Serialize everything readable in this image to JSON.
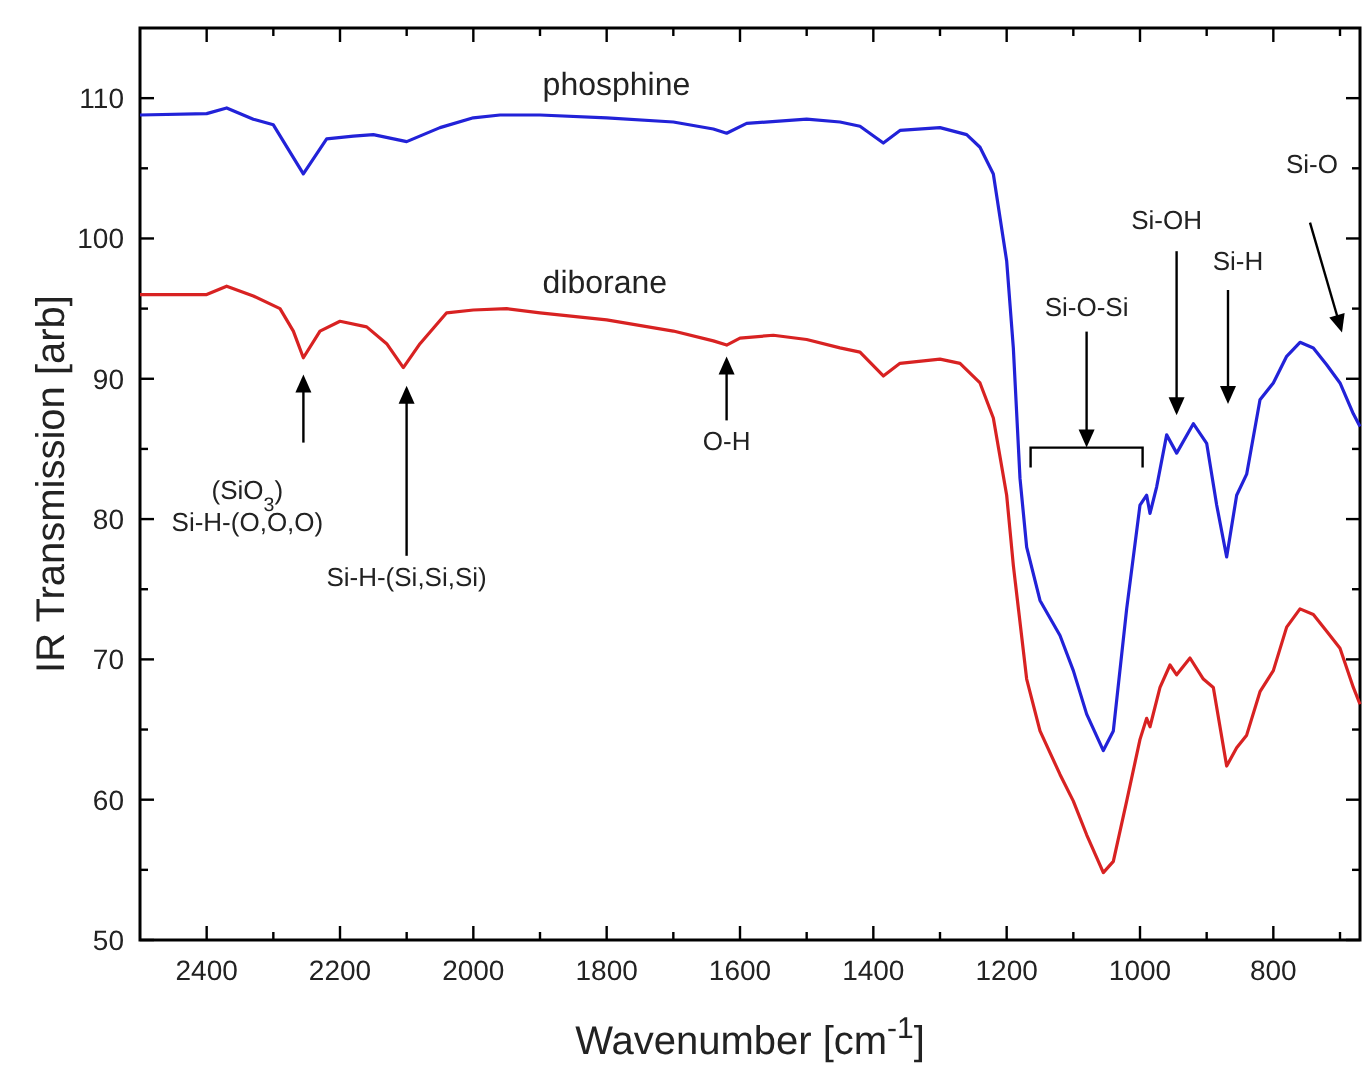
{
  "chart_data": {
    "type": "line",
    "xlabel": "Wavenumber [cm$^{-1}$]",
    "ylabel": "IR Transmission [arb]",
    "xlim": [
      2500,
      670
    ],
    "ylim": [
      50,
      115
    ],
    "xticks": [
      2400,
      {
        "value": 2300,
        "label": null
      },
      2200,
      {
        "value": 2100,
        "label": null
      },
      2000,
      {
        "value": 1900,
        "label": null
      },
      1800,
      {
        "value": 1700,
        "label": null
      },
      1600,
      {
        "value": 1500,
        "label": null
      },
      1400,
      {
        "value": 1300,
        "label": null
      },
      1200,
      {
        "value": 1100,
        "label": null
      },
      1000,
      {
        "value": 900,
        "label": null
      },
      800,
      {
        "value": 700,
        "label": null
      }
    ],
    "yticks": [
      50,
      {
        "value": 55,
        "label": null
      },
      60,
      {
        "value": 65,
        "label": null
      },
      70,
      {
        "value": 75,
        "label": null
      },
      80,
      {
        "value": 85,
        "label": null
      },
      90,
      {
        "value": 95,
        "label": null
      },
      100,
      {
        "value": 105,
        "label": null
      },
      110
    ],
    "grid": false,
    "marker": "none",
    "line_style": "solid",
    "series": [
      {
        "name": "phosphine",
        "color": "#2222d8",
        "x": [
          2500,
          2400,
          2370,
          2330,
          2300,
          2255,
          2220,
          2180,
          2150,
          2100,
          2050,
          2000,
          1960,
          1900,
          1800,
          1700,
          1640,
          1620,
          1590,
          1500,
          1450,
          1420,
          1385,
          1360,
          1300,
          1260,
          1240,
          1220,
          1200,
          1190,
          1180,
          1170,
          1150,
          1120,
          1100,
          1080,
          1055,
          1040,
          1020,
          1000,
          990,
          985,
          975,
          960,
          945,
          920,
          900,
          885,
          870,
          855,
          840,
          820,
          800,
          780,
          760,
          740,
          720,
          700,
          680,
          670
        ],
        "values": [
          108.8,
          108.9,
          109.3,
          108.5,
          108.1,
          104.6,
          107.1,
          107.3,
          107.4,
          106.9,
          107.9,
          108.6,
          108.8,
          108.8,
          108.6,
          108.3,
          107.8,
          107.5,
          108.2,
          108.5,
          108.3,
          108.0,
          106.8,
          107.7,
          107.9,
          107.4,
          106.5,
          104.6,
          98.4,
          92.2,
          82.9,
          78.0,
          74.2,
          71.7,
          69.2,
          66.1,
          63.5,
          64.9,
          73.6,
          81.0,
          81.7,
          80.4,
          82.3,
          86.0,
          84.7,
          86.8,
          85.4,
          81.0,
          77.3,
          81.7,
          83.2,
          88.5,
          89.7,
          91.6,
          92.6,
          92.2,
          91.0,
          89.7,
          87.5,
          86.6
        ]
      },
      {
        "name": "diborane",
        "color": "#d82222",
        "x": [
          2500,
          2400,
          2370,
          2330,
          2290,
          2270,
          2255,
          2230,
          2200,
          2160,
          2130,
          2105,
          2080,
          2040,
          2000,
          1950,
          1900,
          1800,
          1700,
          1640,
          1620,
          1600,
          1550,
          1500,
          1450,
          1420,
          1385,
          1360,
          1300,
          1270,
          1240,
          1220,
          1200,
          1190,
          1170,
          1150,
          1120,
          1100,
          1080,
          1055,
          1040,
          1020,
          1000,
          990,
          985,
          970,
          955,
          945,
          925,
          905,
          890,
          870,
          855,
          840,
          820,
          800,
          780,
          760,
          740,
          720,
          700,
          680,
          670
        ],
        "values": [
          96.0,
          96.0,
          96.6,
          95.9,
          95.0,
          93.4,
          91.5,
          93.4,
          94.1,
          93.7,
          92.5,
          90.8,
          92.5,
          94.7,
          94.9,
          95.0,
          94.7,
          94.2,
          93.4,
          92.7,
          92.4,
          92.9,
          93.1,
          92.8,
          92.2,
          91.9,
          90.2,
          91.1,
          91.4,
          91.1,
          89.7,
          87.2,
          81.7,
          76.7,
          68.6,
          64.9,
          61.8,
          59.9,
          57.5,
          54.8,
          55.6,
          59.9,
          64.3,
          65.8,
          65.2,
          68.0,
          69.6,
          68.9,
          70.1,
          68.6,
          68.0,
          62.4,
          63.7,
          64.6,
          67.7,
          69.2,
          72.3,
          73.6,
          73.2,
          72.0,
          70.8,
          68.0,
          66.8
        ]
      }
    ],
    "annotations": [
      "(SiO$_{3}$)\nSi-H-(O,O,O)",
      "Si-H-(Si,Si,Si)",
      "O-H",
      "Si-O-Si",
      "Si-OH",
      "Si-H",
      "Si-O"
    ]
  }
}
